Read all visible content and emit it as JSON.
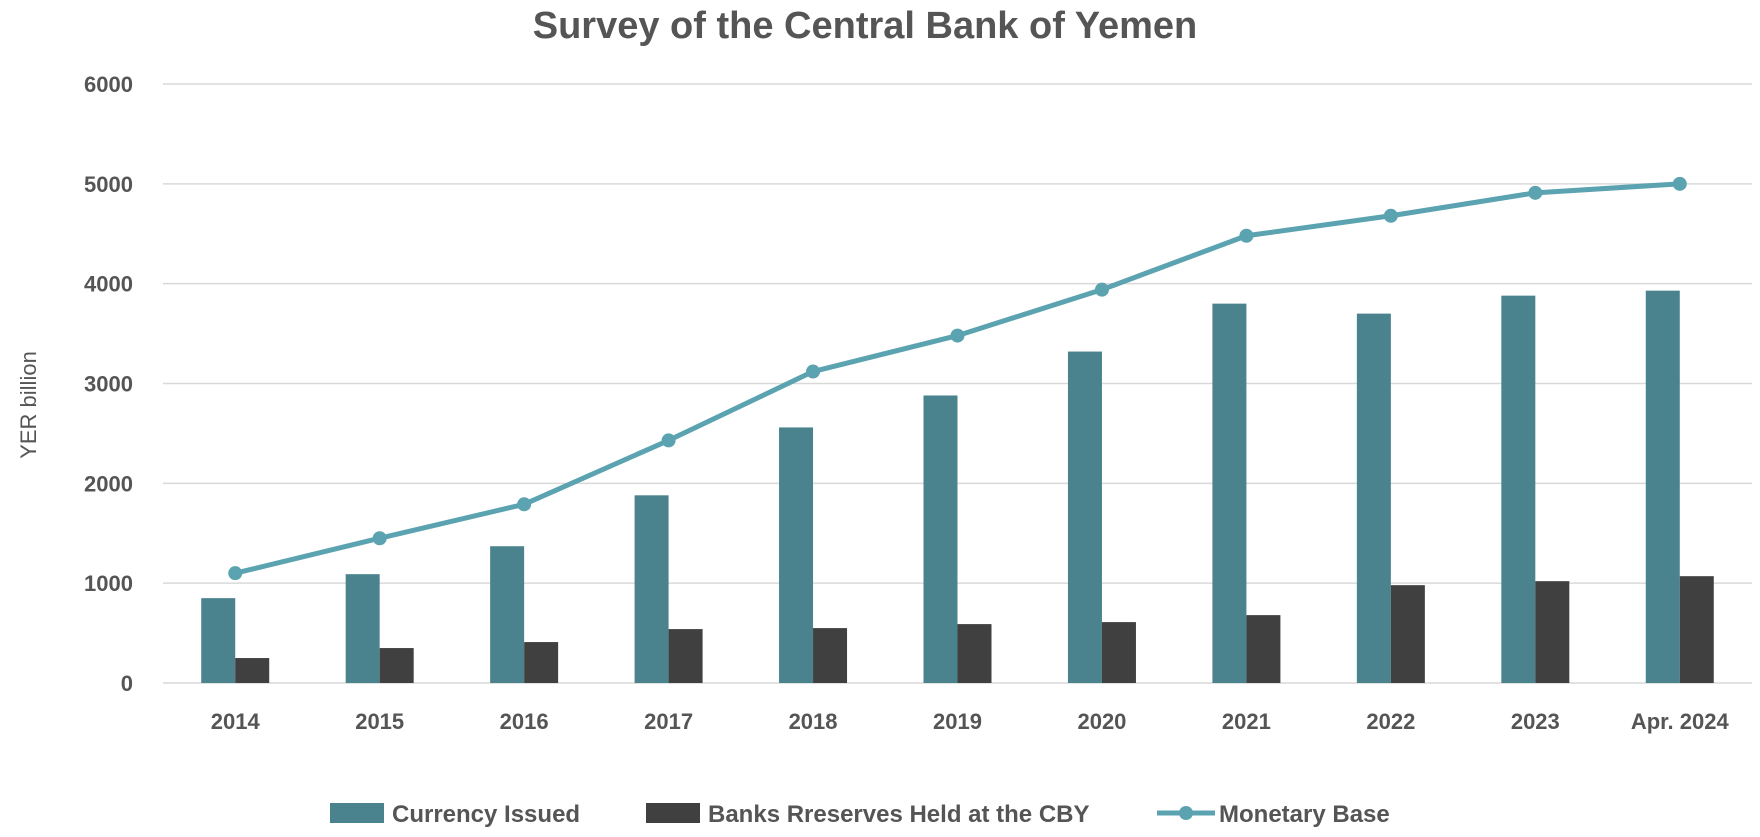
{
  "chart_data": {
    "type": "bar",
    "title": "Survey of the Central Bank of Yemen",
    "xlabel": "",
    "ylabel": "YER billion",
    "ylim": [
      0,
      6000
    ],
    "yticks": [
      0,
      1000,
      2000,
      3000,
      4000,
      5000,
      6000
    ],
    "grid": true,
    "legend_position": "bottom",
    "categories": [
      "2014",
      "2015",
      "2016",
      "2017",
      "2018",
      "2019",
      "2020",
      "2021",
      "2022",
      "2023",
      "Apr. 2024"
    ],
    "series": [
      {
        "name": "Currency Issued",
        "kind": "bar",
        "color": "#4a838e",
        "values": [
          850,
          1090,
          1370,
          1880,
          2560,
          2880,
          3320,
          3800,
          3700,
          3880,
          3930
        ]
      },
      {
        "name": "Banks Rreserves Held at the CBY",
        "kind": "bar",
        "color": "#404040",
        "values": [
          250,
          350,
          410,
          540,
          550,
          590,
          610,
          680,
          980,
          1020,
          1070
        ]
      },
      {
        "name": "Monetary Base",
        "kind": "line",
        "color": "#5ba3b0",
        "values": [
          1100,
          1450,
          1790,
          2430,
          3120,
          3480,
          3940,
          4480,
          4680,
          4910,
          5000
        ]
      }
    ]
  }
}
